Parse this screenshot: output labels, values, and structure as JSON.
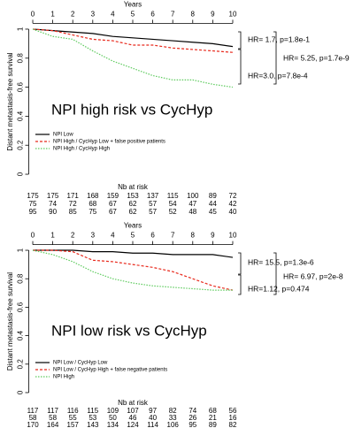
{
  "chart_data": [
    {
      "type": "line",
      "title": "NPI high risk vs CycHyp",
      "x_label": "Years",
      "y_label": "Distant metastasis-free survival",
      "x": [
        0,
        1,
        2,
        3,
        4,
        5,
        6,
        7,
        8,
        9,
        10
      ],
      "xlim": [
        -0.2,
        10.2
      ],
      "xticks": [
        0,
        1,
        2,
        3,
        4,
        5,
        6,
        7,
        8,
        9,
        10
      ],
      "ylim": [
        -0.04,
        1.04
      ],
      "yticks": [
        0,
        0.2,
        0.4,
        0.6,
        0.8,
        1
      ],
      "series": [
        {
          "name": "NPI Low",
          "color": "#000000",
          "values": [
            1,
            0.99,
            0.98,
            0.97,
            0.95,
            0.94,
            0.93,
            0.92,
            0.91,
            0.9,
            0.88
          ]
        },
        {
          "name": "NPI High / CycHyp Low + false positive patients",
          "color": "#e8291c",
          "values": [
            1,
            0.99,
            0.96,
            0.93,
            0.92,
            0.89,
            0.89,
            0.87,
            0.86,
            0.85,
            0.84
          ]
        },
        {
          "name": "NPI High / CycHyp High",
          "color": "#5ecb5e",
          "values": [
            1,
            0.95,
            0.93,
            0.85,
            0.78,
            0.73,
            0.68,
            0.65,
            0.65,
            0.62,
            0.6
          ]
        }
      ],
      "annotations": [
        "HR= 1.7, p=1.8e-1",
        "HR=3.0, p=7.8e-4",
        "HR= 5.25, p=1.7e-9"
      ],
      "at_risk_label": "Nb at risk",
      "at_risk": [
        [
          175,
          175,
          171,
          168,
          159,
          153,
          137,
          115,
          100,
          89,
          72
        ],
        [
          75,
          74,
          72,
          68,
          67,
          62,
          57,
          54,
          47,
          44,
          42
        ],
        [
          95,
          90,
          85,
          75,
          67,
          62,
          57,
          52,
          48,
          45,
          40
        ]
      ]
    },
    {
      "type": "line",
      "title": "NPI low risk vs CycHyp",
      "x_label": "Years",
      "y_label": "Distant metastasis-free survival",
      "x": [
        0,
        1,
        2,
        3,
        4,
        5,
        6,
        7,
        8,
        9,
        10
      ],
      "xlim": [
        -0.2,
        10.2
      ],
      "xticks": [
        0,
        1,
        2,
        3,
        4,
        5,
        6,
        7,
        8,
        9,
        10
      ],
      "ylim": [
        -0.04,
        1.04
      ],
      "yticks": [
        0,
        0.2,
        0.4,
        0.6,
        0.8,
        1
      ],
      "series": [
        {
          "name": "NPI Low / CycHyp Low",
          "color": "#000000",
          "values": [
            1,
            1,
            1,
            0.99,
            0.99,
            0.98,
            0.98,
            0.97,
            0.97,
            0.97,
            0.95
          ]
        },
        {
          "name": "NPI Low / CycHyp High + false negative patients",
          "color": "#e8291c",
          "values": [
            1,
            1,
            0.99,
            0.93,
            0.92,
            0.9,
            0.88,
            0.85,
            0.8,
            0.75,
            0.72
          ]
        },
        {
          "name": "NPI High",
          "color": "#5ecb5e",
          "values": [
            1,
            0.97,
            0.92,
            0.85,
            0.8,
            0.77,
            0.75,
            0.74,
            0.73,
            0.72,
            0.72
          ]
        }
      ],
      "annotations": [
        "HR= 15.5, p=1.3e-6",
        "HR=1.12, p=0.474",
        "HR= 6.97, p=2e-8"
      ],
      "at_risk_label": "Nb at risk",
      "at_risk": [
        [
          117,
          117,
          116,
          115,
          109,
          107,
          97,
          82,
          74,
          68,
          56
        ],
        [
          58,
          58,
          55,
          53,
          50,
          46,
          40,
          33,
          26,
          21,
          16
        ],
        [
          170,
          164,
          157,
          143,
          134,
          124,
          114,
          106,
          95,
          89,
          82
        ]
      ]
    }
  ]
}
